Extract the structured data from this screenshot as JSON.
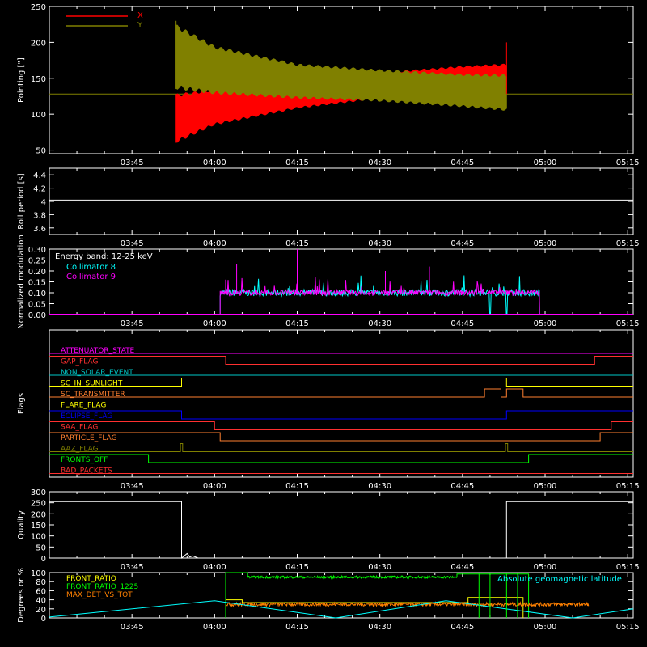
{
  "time_axis": {
    "range": [
      "03:30",
      "05:16"
    ],
    "tick_labels": [
      "03:45",
      "04:00",
      "04:15",
      "04:30",
      "04:45",
      "05:00",
      "05:15"
    ]
  },
  "colors": {
    "axis": "#ffffff",
    "red": "#ff0000",
    "olive": "#808000",
    "cyan": "#00ffff",
    "magenta": "#ff00ff",
    "yellow": "#ffff00",
    "orange": "#ff8000",
    "blue": "#0000ff",
    "green": "#00ff00",
    "white": "#ffffff"
  },
  "chart_data": [
    {
      "type": "area",
      "name": "pointing",
      "ylabel": "Pointing [\"]",
      "ylim": [
        45,
        250
      ],
      "yticks": [
        50,
        100,
        150,
        200,
        250
      ],
      "legend_placement": "top-left",
      "legend": [
        {
          "label": "X",
          "color": "#ff0000"
        },
        {
          "label": "Y",
          "color": "#808000"
        }
      ],
      "baseline": 128,
      "active_range": [
        "03:53",
        "04:53"
      ],
      "series": [
        {
          "name": "X",
          "color": "#ff0000",
          "upper_env": [
            [
              "03:53",
              128
            ],
            [
              "04:00",
              135
            ],
            [
              "04:15",
              147
            ],
            [
              "04:30",
              158
            ],
            [
              "04:45",
              167
            ],
            [
              "04:53",
              170
            ]
          ],
          "lower_env": [
            [
              "03:53",
              60
            ],
            [
              "04:00",
              85
            ],
            [
              "04:15",
              108
            ],
            [
              "04:30",
              122
            ],
            [
              "04:45",
              130
            ],
            [
              "04:53",
              132
            ]
          ]
        },
        {
          "name": "Y",
          "color": "#808000",
          "upper_env": [
            [
              "03:53",
              225
            ],
            [
              "04:00",
              195
            ],
            [
              "04:15",
              170
            ],
            [
              "04:30",
              162
            ],
            [
              "04:45",
              156
            ],
            [
              "04:53",
              155
            ]
          ],
          "lower_env": [
            [
              "03:53",
              135
            ],
            [
              "04:00",
              128
            ],
            [
              "04:15",
              122
            ],
            [
              "04:30",
              118
            ],
            [
              "04:45",
              110
            ],
            [
              "04:53",
              105
            ]
          ]
        }
      ]
    },
    {
      "type": "line",
      "name": "roll-period",
      "ylabel": "Roll period [s]",
      "ylim": [
        3.5,
        4.5
      ],
      "yticks": [
        3.6,
        3.8,
        4.0,
        4.2,
        4.4
      ],
      "series": [
        {
          "name": "roll",
          "color": "#ffffff",
          "points": [
            [
              "03:30",
              4.02
            ],
            [
              "05:16",
              4.02
            ]
          ]
        }
      ]
    },
    {
      "type": "line",
      "name": "modulation",
      "ylabel": "Normalized modulation",
      "ylim": [
        0,
        0.3
      ],
      "yticks": [
        "0.00",
        "0.05",
        "0.10",
        "0.15",
        "0.20",
        "0.25",
        "0.30"
      ],
      "annotation": "Energy band: 12-25 keV",
      "legend": [
        {
          "label": "Collimator 8",
          "color": "#00ffff"
        },
        {
          "label": "Collimator 9",
          "color": "#ff00ff"
        }
      ],
      "series": [
        {
          "name": "Collimator 8",
          "color": "#00ffff",
          "start": "04:01",
          "end": "04:59",
          "mean": 0.1,
          "spread": 0.015,
          "dropouts": [
            "04:50",
            "04:53"
          ]
        },
        {
          "name": "Collimator 9",
          "color": "#ff00ff",
          "start": "04:01",
          "end": "04:59",
          "mean": 0.1,
          "spread": 0.012
        }
      ]
    },
    {
      "type": "line",
      "name": "flags",
      "ylabel": "Flags",
      "series": [
        {
          "name": "ATTENUATOR_STATE",
          "color": "#ff00ff",
          "steps": [
            [
              "03:30",
              0
            ]
          ]
        },
        {
          "name": "GAP_FLAG",
          "color": "#ff3030",
          "steps": [
            [
              "03:30",
              1
            ],
            [
              "04:02",
              0
            ],
            [
              "05:09",
              1
            ]
          ]
        },
        {
          "name": "NON_SOLAR_EVENT",
          "color": "#00c8c8",
          "steps": [
            [
              "03:30",
              0
            ]
          ]
        },
        {
          "name": "SC_IN_SUNLIGHT",
          "color": "#ffff00",
          "steps": [
            [
              "03:30",
              0
            ],
            [
              "03:54",
              1
            ],
            [
              "04:53",
              0
            ]
          ]
        },
        {
          "name": "SC_TRANSMITTER",
          "color": "#ff8030",
          "steps": [
            [
              "03:30",
              0
            ],
            [
              "04:49",
              1
            ],
            [
              "04:52",
              0
            ],
            [
              "04:53",
              1
            ],
            [
              "04:56",
              0
            ]
          ]
        },
        {
          "name": "FLARE_FLAG",
          "color": "#ffff00",
          "steps": [
            [
              "03:30",
              0
            ]
          ]
        },
        {
          "name": "ECLIPSE_FLAG",
          "color": "#0000ff",
          "steps": [
            [
              "03:30",
              1
            ],
            [
              "03:54",
              0
            ],
            [
              "04:53",
              1
            ]
          ]
        },
        {
          "name": "SAA_FLAG",
          "color": "#ff3030",
          "steps": [
            [
              "03:30",
              1
            ],
            [
              "04:00",
              0
            ],
            [
              "05:12",
              1
            ]
          ]
        },
        {
          "name": "PARTICLE_FLAG",
          "color": "#ff8030",
          "steps": [
            [
              "03:30",
              1
            ],
            [
              "04:01",
              0
            ],
            [
              "05:10",
              1
            ]
          ]
        },
        {
          "name": "AAZ_FLAG",
          "color": "#808000",
          "steps": [
            [
              "03:30",
              0
            ],
            [
              "03:53.8",
              1
            ],
            [
              "03:54.2",
              0
            ],
            [
              "04:52.8",
              1
            ],
            [
              "04:53.2",
              0
            ]
          ]
        },
        {
          "name": "FRONTS_OFF",
          "color": "#00ff00",
          "steps": [
            [
              "03:30",
              1
            ],
            [
              "03:48",
              0
            ],
            [
              "04:57",
              1
            ]
          ]
        },
        {
          "name": "BAD_PACKETS",
          "color": "#ff3030",
          "steps": [
            [
              "03:30",
              0
            ]
          ]
        }
      ]
    },
    {
      "type": "line",
      "name": "quality",
      "ylabel": "Quality",
      "ylim": [
        0,
        300
      ],
      "yticks": [
        0,
        50,
        100,
        150,
        200,
        250,
        300
      ],
      "series": [
        {
          "name": "quality",
          "color": "#ffffff",
          "points": [
            [
              "03:30",
              255
            ],
            [
              "03:54",
              255
            ],
            [
              "03:54",
              0
            ],
            [
              "03:55",
              20
            ],
            [
              "03:55.5",
              5
            ],
            [
              "03:56",
              10
            ],
            [
              "03:57",
              0
            ],
            [
              "04:53",
              0
            ],
            [
              "04:53",
              255
            ],
            [
              "05:16",
              255
            ]
          ]
        }
      ]
    },
    {
      "type": "line",
      "name": "ratios",
      "ylabel": "Degrees or %",
      "ylim": [
        0,
        100
      ],
      "yticks": [
        0,
        20,
        40,
        60,
        80,
        100
      ],
      "legend": [
        {
          "label": "FRONT_RATIO",
          "color": "#ffff00"
        },
        {
          "label": "FRONT_RATIO_1225",
          "color": "#00ff00"
        },
        {
          "label": "MAX_DET_VS_TOT",
          "color": "#ff8000"
        }
      ],
      "annotation": "Absolute geomagnetic latitude",
      "annotation_color": "#00ffff",
      "series": [
        {
          "name": "FRONT_RATIO",
          "color": "#ffff00",
          "points": [
            [
              "04:02",
              0
            ],
            [
              "04:02",
              40
            ],
            [
              "04:05",
              40
            ],
            [
              "04:05",
              34
            ],
            [
              "04:46",
              34
            ],
            [
              "04:46",
              45
            ],
            [
              "04:56",
              45
            ],
            [
              "04:56",
              0
            ]
          ]
        },
        {
          "name": "FRONT_RATIO_1225",
          "color": "#00ff00",
          "points": [
            [
              "04:02",
              0
            ],
            [
              "04:02",
              100
            ],
            [
              "04:06",
              100
            ],
            [
              "04:06",
              90
            ],
            [
              "04:44",
              90
            ],
            [
              "04:44",
              97
            ],
            [
              "04:57",
              97
            ],
            [
              "04:57",
              0
            ]
          ]
        },
        {
          "name": "MAX_DET_VS_TOT",
          "color": "#ff8000",
          "start": "04:02",
          "end": "05:08",
          "mean": 30,
          "spread": 4
        },
        {
          "name": "Absolute geomagnetic latitude",
          "color": "#00ffff",
          "points": [
            [
              "03:30",
              2
            ],
            [
              "04:00",
              38
            ],
            [
              "04:22",
              0
            ],
            [
              "04:42",
              38
            ],
            [
              "05:05",
              0
            ],
            [
              "05:16",
              20
            ]
          ]
        }
      ]
    }
  ]
}
